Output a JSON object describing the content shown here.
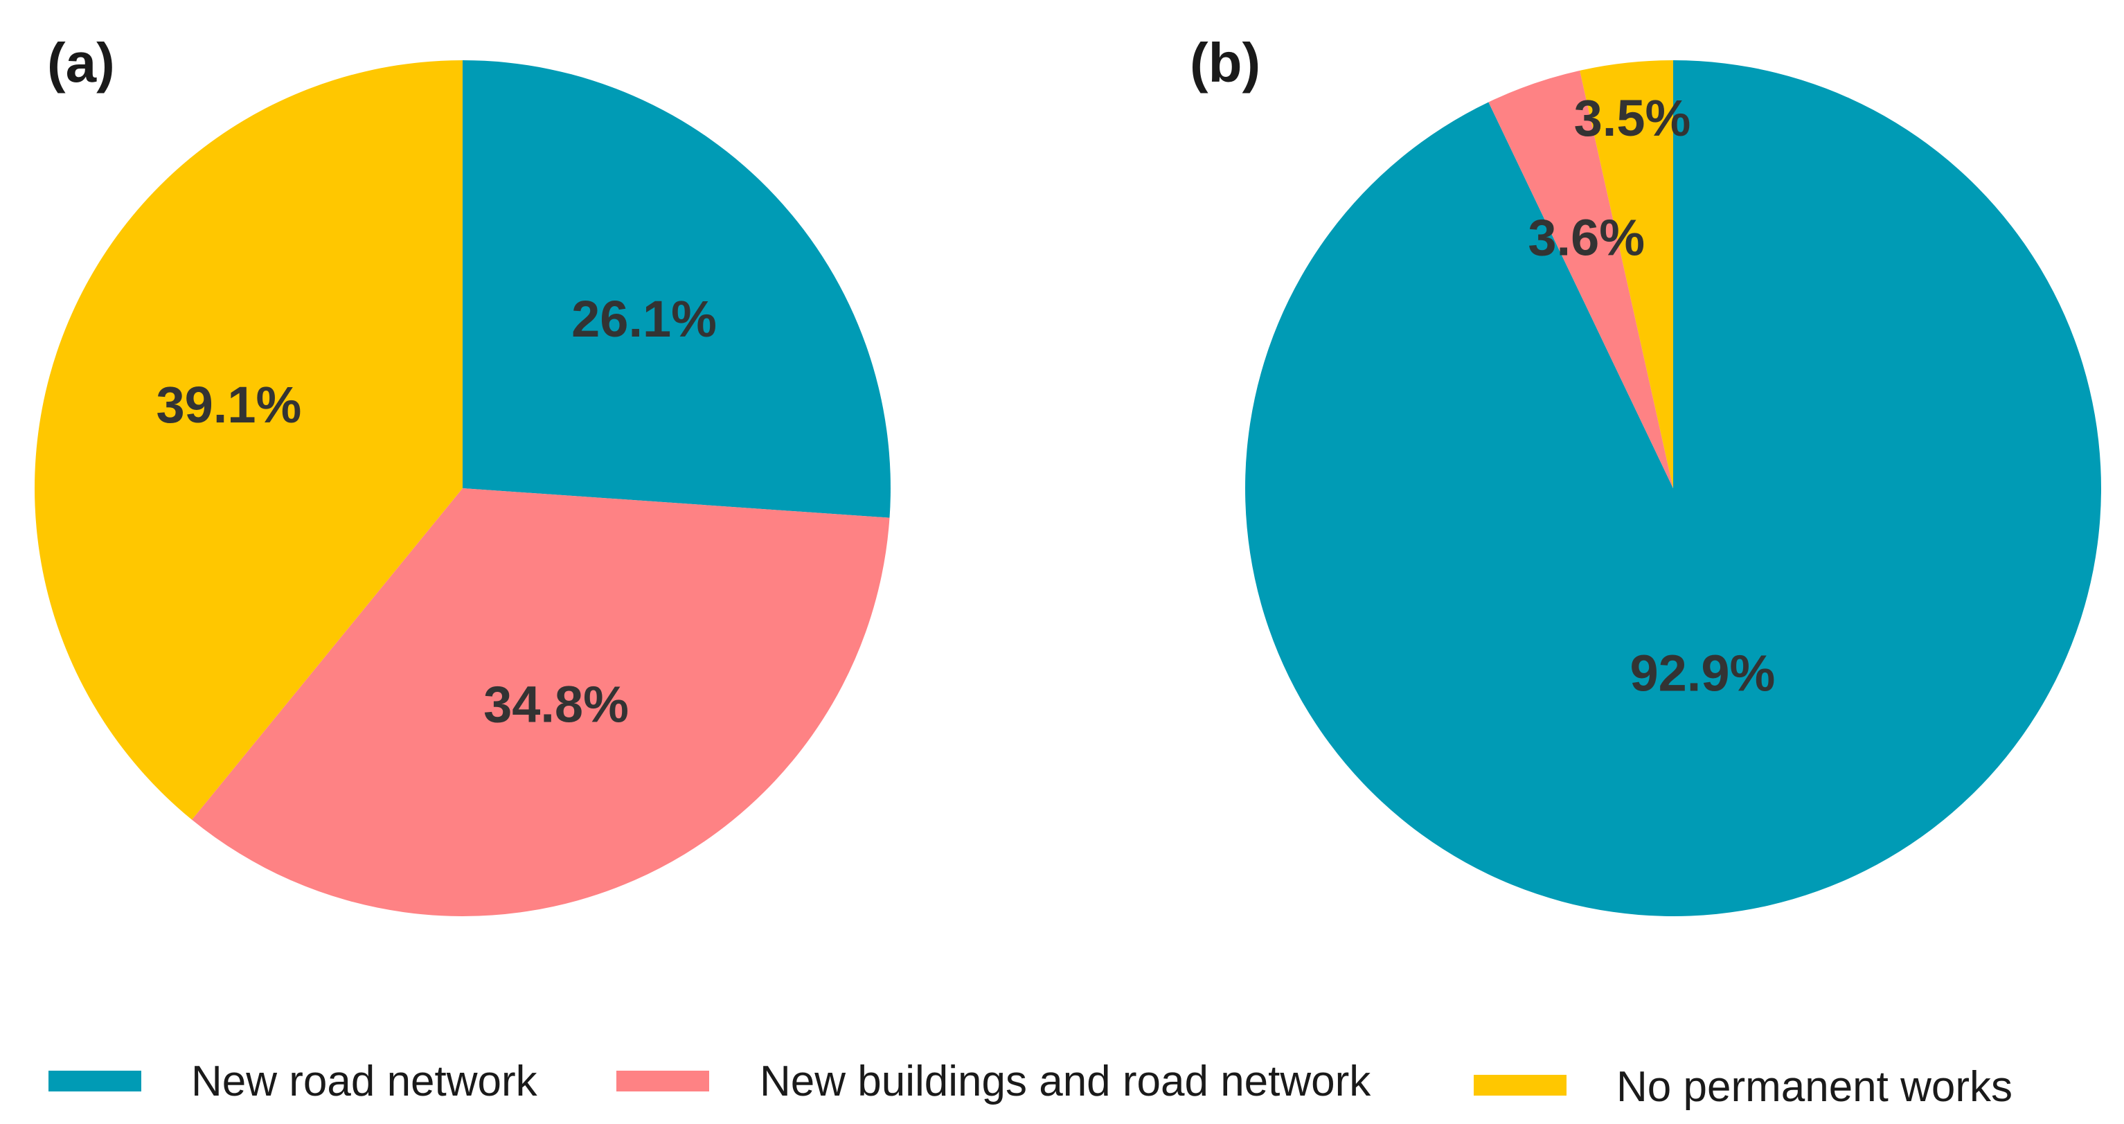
{
  "colors": {
    "new_road_network": "#009bb5",
    "new_buildings_and_road_network": "#fe8284",
    "no_permanent_works": "#ffc700"
  },
  "legend": {
    "items": [
      {
        "label": "New road network",
        "color": "#009bb5"
      },
      {
        "label": "New buildings and road network",
        "color": "#fe8284"
      },
      {
        "label": "No permanent works",
        "color": "#ffc700"
      }
    ]
  },
  "chart_data": [
    {
      "type": "pie",
      "panel_label": "(a)",
      "start_angle_deg": 0,
      "direction": "clockwise",
      "slices": [
        {
          "label": "New road network",
          "value": 26.1,
          "display": "26.1%",
          "color": "#009bb5"
        },
        {
          "label": "New buildings and road network",
          "value": 34.8,
          "display": "34.8%",
          "color": "#fe8284"
        },
        {
          "label": "No permanent works",
          "value": 39.1,
          "display": "39.1%",
          "color": "#ffc700"
        }
      ]
    },
    {
      "type": "pie",
      "panel_label": "(b)",
      "start_angle_deg": 0,
      "direction": "clockwise",
      "slices": [
        {
          "label": "New road network",
          "value": 92.9,
          "display": "92.9%",
          "color": "#009bb5"
        },
        {
          "label": "New buildings and road network",
          "value": 3.6,
          "display": "3.6%",
          "color": "#fe8284"
        },
        {
          "label": "No permanent works",
          "value": 3.5,
          "display": "3.5%",
          "color": "#ffc700"
        }
      ]
    }
  ]
}
